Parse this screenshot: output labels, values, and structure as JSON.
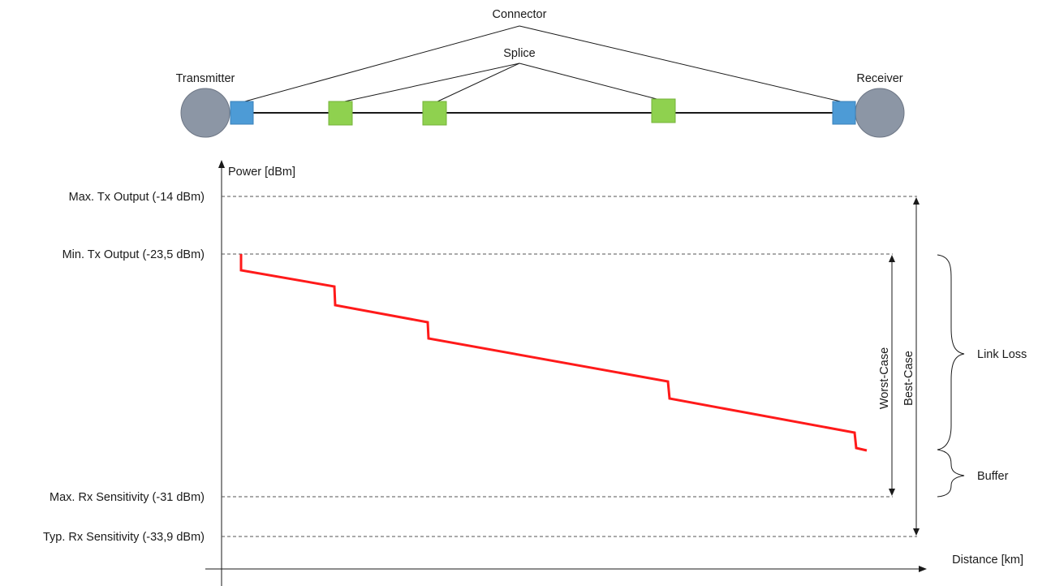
{
  "topology": {
    "transmitter_label": "Transmitter",
    "receiver_label": "Receiver",
    "connector_label": "Connector",
    "splice_label": "Splice",
    "colors": {
      "endpoint": "#8c96a5",
      "connector": "#4d9bd6",
      "splice": "#8fd14f",
      "fiber": "#1a1a1a"
    }
  },
  "budget": {
    "y_axis_label": "Power [dBm]",
    "x_axis_label": "Distance [km]",
    "levels": {
      "max_tx": "Max. Tx Output (-14 dBm)",
      "min_tx": "Min. Tx Output (-23,5 dBm)",
      "max_rx": "Max. Rx Sensitivity (-31 dBm)",
      "typ_rx": "Typ. Rx Sensitivity (-33,9 dBm)"
    },
    "worst_case_label": "Worst-Case",
    "best_case_label": "Best-Case",
    "link_loss_label": "Link Loss",
    "buffer_label": "Buffer",
    "trace_color": "#ff1a1a"
  }
}
